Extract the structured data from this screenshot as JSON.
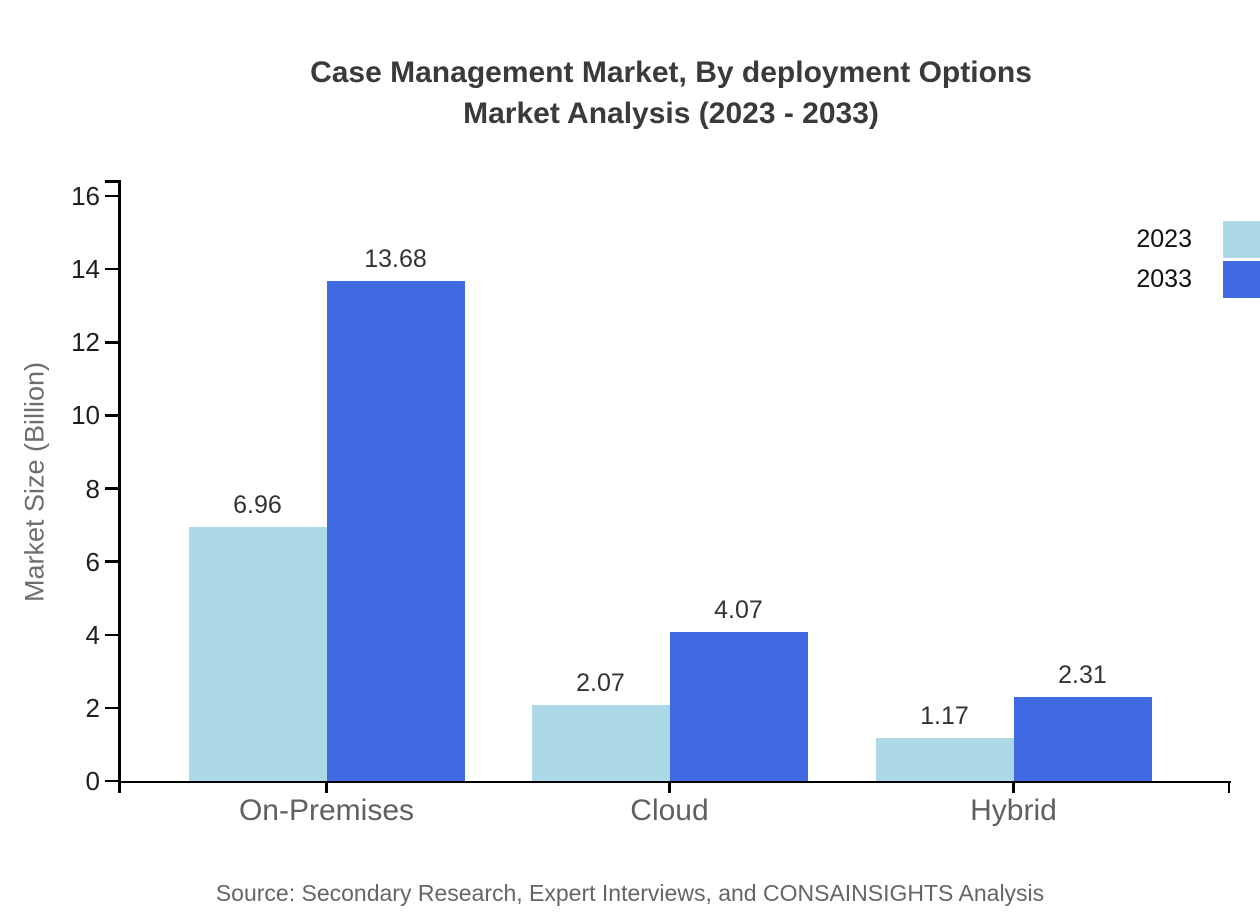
{
  "title": {
    "line1": "Case Management Market, By deployment Options",
    "line2": "Market Analysis (2023 - 2033)"
  },
  "source": "Source: Secondary Research, Expert Interviews, and CONSAINSIGHTS Analysis",
  "chart_data": {
    "type": "bar",
    "title": "Case Management Market, By deployment Options Market Analysis (2023 - 2033)",
    "categories": [
      "On-Premises",
      "Cloud",
      "Hybrid"
    ],
    "series": [
      {
        "name": "2023",
        "color": "#ADD8E6",
        "values": [
          6.96,
          2.07,
          1.17
        ]
      },
      {
        "name": "2033",
        "color": "#4169E1",
        "values": [
          13.68,
          4.07,
          2.31
        ]
      }
    ],
    "value_labels": [
      "6.96",
      "13.68",
      "2.07",
      "4.07",
      "1.17",
      "2.31"
    ],
    "xlabel": "",
    "ylabel": "Market Size (Billion)",
    "ylim": [
      0,
      16
    ],
    "yticks": [
      0,
      2,
      4,
      6,
      8,
      10,
      12,
      14,
      16
    ],
    "grid": false,
    "legend_position": "top-right"
  },
  "colors": {
    "axis": "#000000",
    "title_text": "#3a3a3a",
    "tick_text": "#1f1f1f",
    "category_text": "#606060",
    "ylabel_text": "#6e6e6e",
    "value_text": "#333333",
    "legend_text": "#111111",
    "source_text": "#666666",
    "series_2023": "#ADD8E6",
    "series_2033": "#4169E1"
  }
}
